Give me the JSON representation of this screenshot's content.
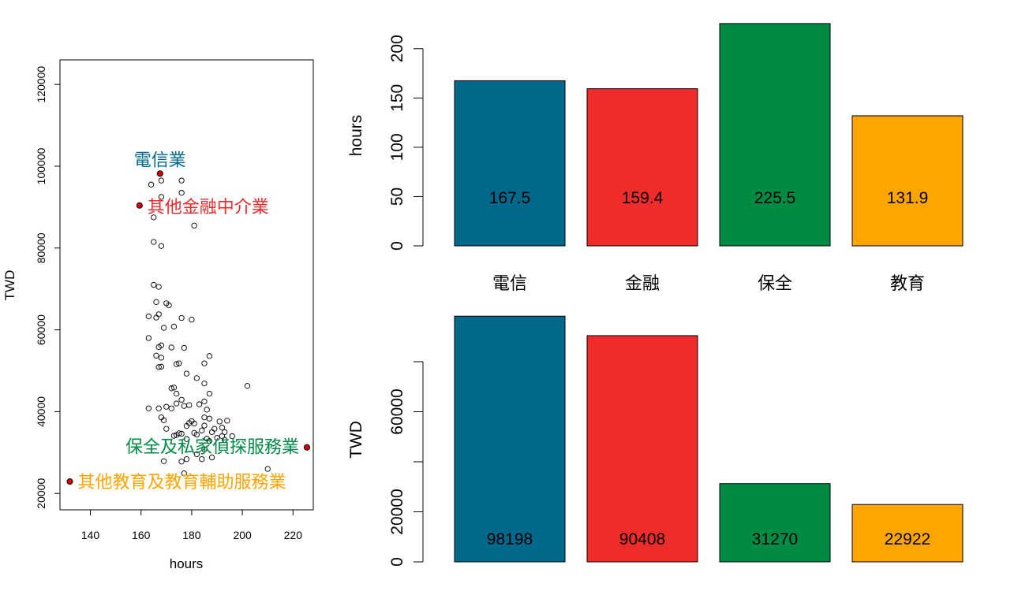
{
  "colors": {
    "telecom": "#00688B",
    "finance": "#EE2C2C",
    "security": "#008B45",
    "education": "#FFA500",
    "highlight_point": "#CC0000",
    "axis": "#000000"
  },
  "chart_data": [
    {
      "type": "scatter",
      "xlabel": "hours",
      "ylabel": "TWD",
      "xlim": [
        128,
        228
      ],
      "ylim": [
        16000,
        126000
      ],
      "xticks": [
        140,
        160,
        180,
        200,
        220
      ],
      "xtick_labels": [
        "140",
        "160",
        "180",
        "200",
        "220"
      ],
      "yticks": [
        20000,
        40000,
        60000,
        80000,
        100000,
        120000
      ],
      "ytick_labels": [
        "20000",
        "40000",
        "60000",
        "80000",
        "100000",
        "120000"
      ],
      "grid": false,
      "points": [
        [
          168,
          96500
        ],
        [
          176,
          96500
        ],
        [
          164,
          95500
        ],
        [
          176,
          93500
        ],
        [
          168,
          92500
        ],
        [
          165,
          87500
        ],
        [
          181,
          85500
        ],
        [
          165,
          81500
        ],
        [
          168,
          80500
        ],
        [
          165,
          71000
        ],
        [
          167,
          70500
        ],
        [
          170,
          66500
        ],
        [
          171,
          66000
        ],
        [
          166,
          66800
        ],
        [
          163,
          63300
        ],
        [
          167,
          63800
        ],
        [
          166,
          63000
        ],
        [
          176,
          62900
        ],
        [
          180,
          62500
        ],
        [
          173,
          60800
        ],
        [
          169,
          60500
        ],
        [
          163,
          58000
        ],
        [
          168,
          56200
        ],
        [
          167,
          55800
        ],
        [
          172,
          55700
        ],
        [
          177,
          55600
        ],
        [
          187,
          53600
        ],
        [
          166,
          53700
        ],
        [
          168,
          53200
        ],
        [
          175,
          51800
        ],
        [
          174,
          51600
        ],
        [
          185,
          51800
        ],
        [
          168,
          51000
        ],
        [
          167,
          50900
        ],
        [
          178,
          49300
        ],
        [
          182,
          48200
        ],
        [
          185,
          46900
        ],
        [
          202,
          46300
        ],
        [
          172,
          45700
        ],
        [
          173,
          45900
        ],
        [
          187,
          44400
        ],
        [
          174,
          44400
        ],
        [
          176,
          42900
        ],
        [
          185,
          42500
        ],
        [
          174,
          42000
        ],
        [
          183,
          41800
        ],
        [
          179,
          41600
        ],
        [
          177,
          41400
        ],
        [
          170,
          41200
        ],
        [
          172,
          40800
        ],
        [
          167,
          40800
        ],
        [
          163,
          40800
        ],
        [
          186,
          40500
        ],
        [
          185,
          38600
        ],
        [
          187,
          38300
        ],
        [
          194,
          37800
        ],
        [
          191,
          37600
        ],
        [
          168,
          38600
        ],
        [
          169,
          37900
        ],
        [
          180,
          37700
        ],
        [
          179,
          37200
        ],
        [
          181,
          37100
        ],
        [
          178,
          36500
        ],
        [
          185,
          36600
        ],
        [
          170,
          35800
        ],
        [
          192,
          36100
        ],
        [
          184,
          35400
        ],
        [
          188,
          35000
        ],
        [
          193,
          35000
        ],
        [
          189,
          35800
        ],
        [
          181,
          34800
        ],
        [
          176,
          34600
        ],
        [
          174,
          34300
        ],
        [
          175,
          34700
        ],
        [
          182,
          34400
        ],
        [
          173,
          34100
        ],
        [
          192,
          34000
        ],
        [
          196,
          34000
        ],
        [
          190,
          33600
        ],
        [
          178,
          33300
        ],
        [
          186,
          33400
        ],
        [
          187,
          32800
        ],
        [
          193,
          33100
        ],
        [
          185,
          30800
        ],
        [
          182,
          29600
        ],
        [
          178,
          28400
        ],
        [
          176,
          27800
        ],
        [
          188,
          28800
        ],
        [
          184,
          28400
        ],
        [
          169,
          27900
        ],
        [
          210,
          26000
        ],
        [
          177,
          24900
        ]
      ],
      "highlights": [
        {
          "label": "電信業",
          "x": 167.5,
          "y": 98198,
          "color_key": "telecom"
        },
        {
          "label": "其他金融中介業",
          "x": 159.4,
          "y": 90408,
          "color_key": "finance"
        },
        {
          "label": "保全及私家偵探服務業",
          "x": 225.5,
          "y": 31270,
          "color_key": "security"
        },
        {
          "label": "其他教育及教育輔助服務業",
          "x": 131.9,
          "y": 22922,
          "color_key": "education"
        }
      ]
    },
    {
      "type": "bar",
      "ylabel": "hours",
      "ylim": [
        0,
        227
      ],
      "yticks": [
        0,
        50,
        100,
        150,
        200
      ],
      "ytick_labels": [
        "0",
        "50",
        "100",
        "150",
        "200"
      ],
      "categories": [
        "電信",
        "金融",
        "保全",
        "教育"
      ],
      "values": [
        167.5,
        159.4,
        225.5,
        131.9
      ],
      "value_labels": [
        "167.5",
        "159.4",
        "225.5",
        "131.9"
      ],
      "color_keys": [
        "telecom",
        "finance",
        "security",
        "education"
      ],
      "grid": false
    },
    {
      "type": "bar",
      "ylabel": "TWD",
      "ylim": [
        0,
        80000
      ],
      "yticks": [
        0,
        20000,
        40000,
        60000,
        80000
      ],
      "ytick_labels": [
        "0",
        "20000",
        "",
        "60000",
        ""
      ],
      "values": [
        98198,
        90408,
        31270,
        22922
      ],
      "value_labels": [
        "98198",
        "90408",
        "31270",
        "22922"
      ],
      "color_keys": [
        "telecom",
        "finance",
        "security",
        "education"
      ],
      "grid": false
    }
  ]
}
